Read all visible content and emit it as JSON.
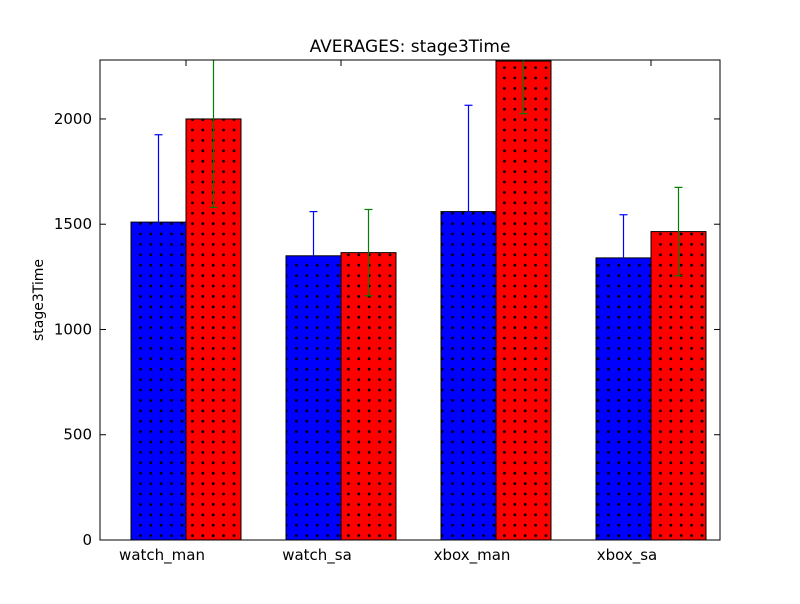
{
  "chart_data": {
    "type": "bar",
    "title": "AVERAGES: stage3Time",
    "xlabel": "",
    "ylabel": "stage3Time",
    "categories": [
      "watch_man",
      "watch_sa",
      "xbox_man",
      "xbox_sa"
    ],
    "ylim": [
      0,
      2280
    ],
    "yticks": [
      0,
      500,
      1000,
      1500,
      2000
    ],
    "grid": false,
    "series": [
      {
        "color": "#0000ff",
        "error_color": "#0000ff",
        "hatch": "dots",
        "values": [
          1510,
          1350,
          1560,
          1340
        ],
        "errors": [
          415,
          210,
          505,
          205
        ]
      },
      {
        "color": "#ff0000",
        "error_color": "#008000",
        "hatch": "dots",
        "values": [
          2000,
          1365,
          2275,
          1465
        ],
        "errors": [
          420,
          205,
          250,
          210
        ]
      }
    ]
  }
}
